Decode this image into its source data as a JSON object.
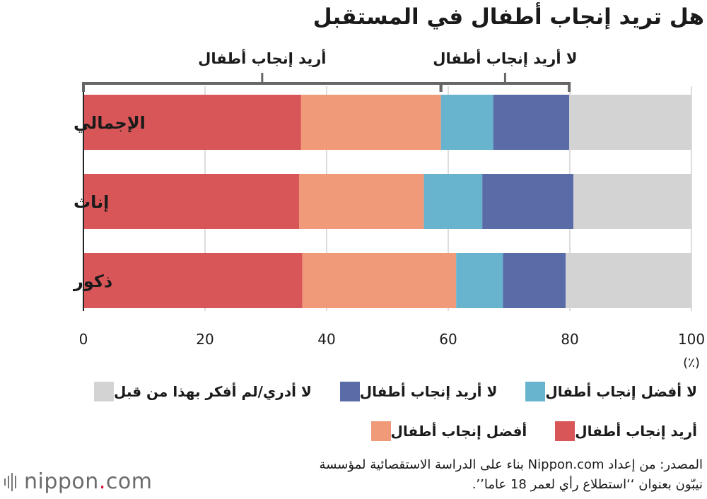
{
  "chart_data": {
    "type": "bar",
    "stacked": true,
    "orientation": "horizontal",
    "title": "هل تريد إنجاب أطفال في المستقبل",
    "categories": [
      "الإجمالي",
      "إناث",
      "ذكور"
    ],
    "series": [
      {
        "name": "أريد إنجاب أطفال",
        "color": "#d85657",
        "values": [
          35.8,
          35.5,
          36.0
        ]
      },
      {
        "name": "أفضل إنجاب أطفال",
        "color": "#f19a79",
        "values": [
          23.0,
          20.5,
          25.3
        ]
      },
      {
        "name": "لا أفضل إنجاب أطفال",
        "color": "#68b4cf",
        "values": [
          8.6,
          9.6,
          7.7
        ]
      },
      {
        "name": "لا أريد إنجاب أطفال",
        "color": "#596ca8",
        "values": [
          12.5,
          15.0,
          10.3
        ]
      },
      {
        "name": "لا أدري/لم أفكر بهذا من قبل",
        "color": "#d3d3d3",
        "values": [
          20.1,
          19.4,
          20.7
        ]
      }
    ],
    "xlim": [
      0,
      100
    ],
    "x_ticks": [
      "0",
      "20",
      "40",
      "60",
      "80",
      "100"
    ],
    "x_unit": "(٪)",
    "grid": true,
    "bracket_labels": {
      "want": "أريد إنجاب أطفال",
      "not_want": "لا أريد إنجاب أطفال"
    },
    "legend_rows": [
      [
        {
          "label": "لا أدري/لم أفكر بهذا من قبل",
          "color": "#d3d3d3"
        },
        {
          "label": "لا أريد إنجاب أطفال",
          "color": "#596ca8"
        },
        {
          "label": "لا أفضل إنجاب أطفال",
          "color": "#68b4cf"
        }
      ],
      [
        {
          "label": "أفضل إنجاب أطفال",
          "color": "#f19a79"
        },
        {
          "label": "أريد إنجاب أطفال",
          "color": "#d85657"
        }
      ]
    ]
  },
  "source": {
    "line1": "المصدر: من إعداد Nippon.com بناء على الدراسة الاستقصائية لمؤسسة",
    "line2": "نيبّون بعنوان ‘‘استطلاع رأي لعمر 18 عاما’’."
  },
  "logo": {
    "brand": "nippon",
    "dot": ".",
    "suffix": "com"
  },
  "colors": {
    "bracket": "#666666",
    "grid": "#bbbbbb",
    "axis": "#222222"
  }
}
